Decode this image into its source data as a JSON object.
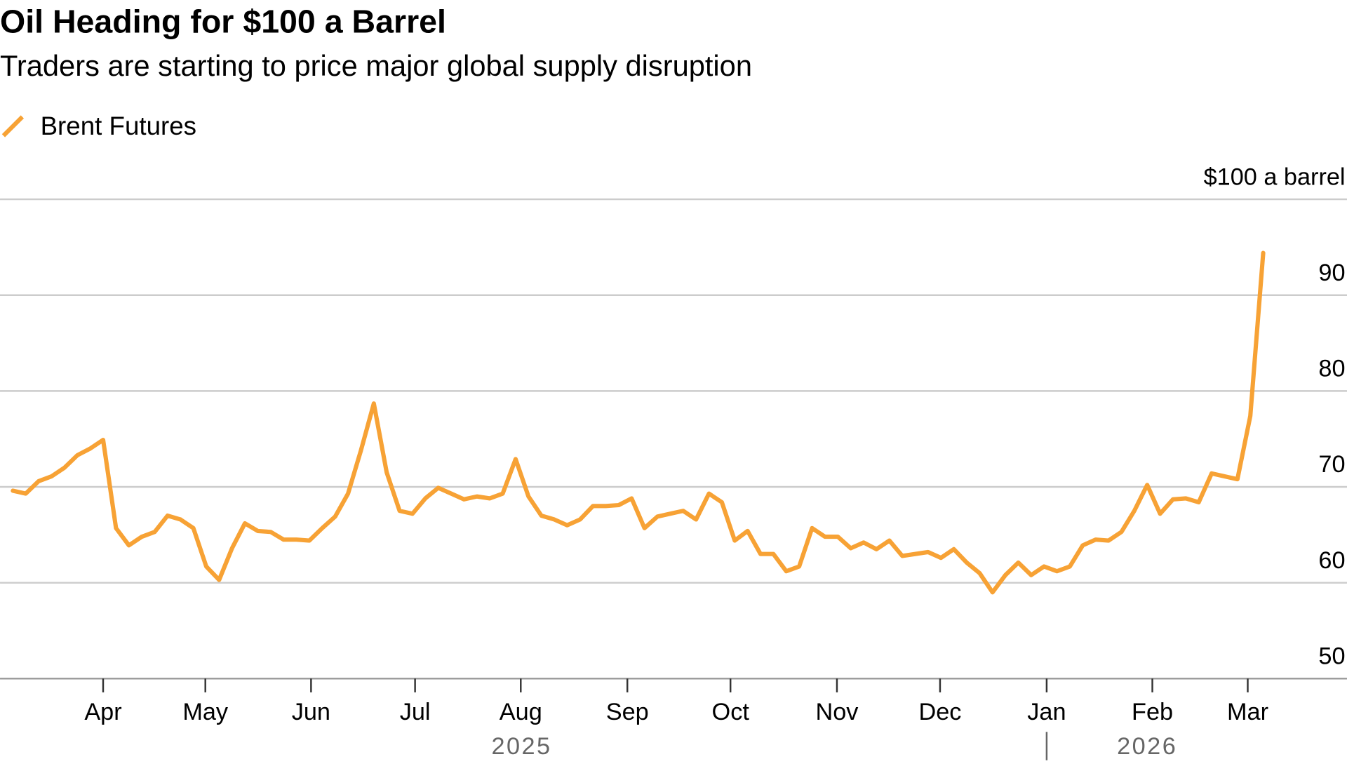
{
  "chart_data": {
    "type": "line",
    "title": "Oil Heading for $100 a Barrel",
    "subtitle": "Traders are starting to price major global supply disruption",
    "series": [
      {
        "name": "Brent Futures",
        "color": "#f7a235",
        "values": [
          69.6,
          69.3,
          70.6,
          71.1,
          72,
          73.3,
          74,
          74.9,
          65.7,
          63.9,
          64.8,
          65.3,
          67,
          66.6,
          65.7,
          61.7,
          60.3,
          63.6,
          66.2,
          65.4,
          65.3,
          64.5,
          64.5,
          64.4,
          65.7,
          66.9,
          69.3,
          73.8,
          78.7,
          71.5,
          67.5,
          67.2,
          68.8,
          69.9,
          69.3,
          68.7,
          69,
          68.8,
          69.3,
          72.9,
          69,
          67,
          66.6,
          66,
          66.6,
          68,
          68,
          68.1,
          68.8,
          65.7,
          66.9,
          67.2,
          67.5,
          66.6,
          69.3,
          68.4,
          64.4,
          65.4,
          63,
          63,
          61.2,
          61.7,
          65.7,
          64.8,
          64.8,
          63.6,
          64.2,
          63.5,
          64.4,
          62.8,
          63,
          63.2,
          62.6,
          63.5,
          62.1,
          61,
          59,
          60.8,
          62.1,
          60.8,
          61.7,
          61.2,
          61.7,
          63.9,
          64.5,
          64.4,
          65.3,
          67.5,
          70.2,
          67.2,
          68.7,
          68.8,
          68.4,
          71.4,
          71.1,
          70.8,
          77.4,
          94.4
        ]
      }
    ],
    "xlim": [
      -1,
      103.5
    ],
    "xticks": [
      {
        "value": 7,
        "label": "Apr"
      },
      {
        "value": 14.93,
        "label": "May"
      },
      {
        "value": 23.13,
        "label": "Jun"
      },
      {
        "value": 31.2,
        "label": "Jul"
      },
      {
        "value": 39.4,
        "label": "Aug"
      },
      {
        "value": 47.67,
        "label": "Sep"
      },
      {
        "value": 55.67,
        "label": "Oct"
      },
      {
        "value": 63.93,
        "label": "Nov"
      },
      {
        "value": 71.93,
        "label": "Dec"
      },
      {
        "value": 80.2,
        "label": "Jan"
      },
      {
        "value": 88.4,
        "label": "Feb"
      },
      {
        "value": 95.8,
        "label": "Mar"
      }
    ],
    "year_labels": [
      "2025",
      "2026"
    ],
    "ylim": [
      50,
      100
    ],
    "yticks": [
      50,
      60,
      70,
      80,
      90,
      {
        "value": 100,
        "label": "$100 a barrel"
      }
    ],
    "grid": true
  }
}
